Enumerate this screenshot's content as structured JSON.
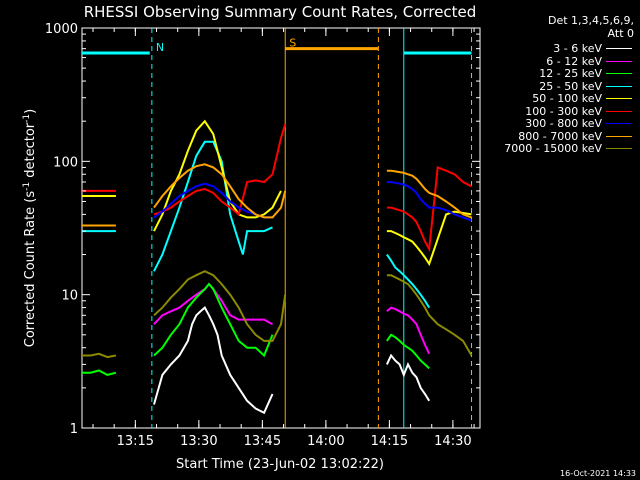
{
  "chart_data": {
    "type": "line",
    "title": "RHESSI Observing Summary Count Rates, Corrected",
    "xlabel": "Start Time (23-Jun-02 13:02:22)",
    "ylabel": "Corrected Count Rate (s⁻¹ detector⁻¹)",
    "ylabel_parts": {
      "main": "Corrected Count Rate (s",
      "exp1": "-1",
      "mid": " detector",
      "exp2": "-1",
      "end": ")"
    },
    "yscale": "log",
    "ylim": [
      1,
      1000
    ],
    "xlim_minutes": [
      0,
      94
    ],
    "x_ticks": [
      {
        "label": "13:15",
        "minutes": 12.6
      },
      {
        "label": "13:30",
        "minutes": 27.6
      },
      {
        "label": "13:45",
        "minutes": 42.6
      },
      {
        "label": "14:00",
        "minutes": 57.6
      },
      {
        "label": "14:15",
        "minutes": 72.6
      },
      {
        "label": "14:30",
        "minutes": 87.6
      }
    ],
    "y_ticks": [
      {
        "label": "1",
        "value": 1
      },
      {
        "label": "10",
        "value": 10
      },
      {
        "label": "100",
        "value": 100
      },
      {
        "label": "1000",
        "value": 1000
      }
    ],
    "detectors": "Det 1,3,4,5,6,9,",
    "attenuator": "Att 0",
    "timestamp": "16-Oct-2021 14:33",
    "legend_position": "top-right",
    "series": [
      {
        "name": "3 - 6 keV",
        "color": "#ffffff",
        "segments": [
          {
            "x": [
              17,
              19,
              21,
              23,
              25,
              26,
              27,
              28,
              29,
              30,
              31,
              32,
              33,
              35,
              37,
              39,
              41,
              43,
              45
            ],
            "y": [
              1.5,
              2.5,
              3,
              3.5,
              4.5,
              6,
              7,
              7.5,
              8,
              7,
              6,
              5,
              3.5,
              2.5,
              2,
              1.6,
              1.4,
              1.3,
              1.8
            ]
          },
          {
            "x": [
              72,
              73,
              74,
              75,
              76,
              77,
              78,
              79,
              80,
              81,
              82
            ],
            "y": [
              3.0,
              3.5,
              3.2,
              3.0,
              2.5,
              3.0,
              2.6,
              2.4,
              2.0,
              1.8,
              1.6
            ]
          }
        ]
      },
      {
        "name": "6 - 12 keV",
        "color": "#ff00ff",
        "segments": [
          {
            "x": [
              17,
              19,
              21,
              23,
              25,
              27,
              29,
              30,
              31,
              33,
              35,
              37,
              39,
              41,
              43,
              45
            ],
            "y": [
              6,
              7,
              7.5,
              8,
              9,
              10,
              11,
              12,
              11,
              9,
              7,
              6.5,
              6.5,
              6.5,
              6.5,
              6
            ]
          },
          {
            "x": [
              72,
              73,
              74,
              75,
              76,
              77,
              78,
              79,
              80,
              81,
              82
            ],
            "y": [
              7.5,
              8,
              7.8,
              7.5,
              7.2,
              7,
              6.5,
              6,
              5,
              4.2,
              3.6
            ]
          }
        ]
      },
      {
        "name": "12 - 25 keV",
        "color": "#00ff00",
        "segments": [
          {
            "x": [
              0,
              2,
              4,
              6,
              8
            ],
            "y": [
              2.6,
              2.6,
              2.7,
              2.5,
              2.6
            ]
          },
          {
            "x": [
              17,
              19,
              21,
              23,
              25,
              27,
              29,
              30,
              31,
              33,
              35,
              37,
              39,
              41,
              43,
              45
            ],
            "y": [
              3.5,
              4,
              5,
              6,
              8,
              9.5,
              11,
              12,
              11,
              8,
              6,
              4.5,
              4,
              4,
              3.5,
              5
            ]
          },
          {
            "x": [
              72,
              73,
              74,
              75,
              76,
              77,
              78,
              79,
              80,
              81,
              82
            ],
            "y": [
              4.5,
              5,
              4.8,
              4.5,
              4.2,
              4,
              3.8,
              3.5,
              3.2,
              3,
              2.8
            ]
          }
        ]
      },
      {
        "name": "25 - 50 keV",
        "color": "#00ffff",
        "segments": [
          {
            "x": [
              0,
              2,
              4,
              6,
              8
            ],
            "y": [
              30,
              30,
              30,
              30,
              30
            ]
          },
          {
            "x": [
              17,
              19,
              21,
              23,
              25,
              27,
              29,
              31,
              33,
              35,
              37,
              38,
              39,
              41,
              43,
              45
            ],
            "y": [
              15,
              20,
              30,
              45,
              70,
              110,
              140,
              140,
              100,
              40,
              25,
              20,
              30,
              30,
              30,
              32
            ]
          },
          {
            "x": [
              72,
              73,
              74,
              75,
              76,
              77,
              78,
              79,
              80,
              81,
              82
            ],
            "y": [
              20,
              18,
              16,
              15,
              14,
              13,
              12,
              11,
              10,
              9,
              8
            ]
          }
        ]
      },
      {
        "name": "50 - 100 keV",
        "color": "#ffff00",
        "segments": [
          {
            "x": [
              0,
              2,
              4,
              6,
              8
            ],
            "y": [
              55,
              55,
              55,
              55,
              55
            ]
          },
          {
            "x": [
              17,
              19,
              21,
              23,
              25,
              27,
              29,
              31,
              33,
              35,
              37,
              39,
              41,
              43,
              45,
              47
            ],
            "y": [
              30,
              40,
              60,
              80,
              120,
              170,
              200,
              160,
              90,
              50,
              40,
              38,
              38,
              40,
              45,
              60
            ]
          },
          {
            "x": [
              72,
              73,
              74,
              75,
              76,
              77,
              78,
              79,
              80,
              81,
              82,
              86,
              88,
              90,
              92
            ],
            "y": [
              30,
              30,
              29,
              28,
              27,
              26,
              25,
              23,
              21,
              19,
              17,
              40,
              42,
              41,
              40
            ]
          }
        ]
      },
      {
        "name": "100 - 300 keV",
        "color": "#ff0000",
        "segments": [
          {
            "x": [
              0,
              2,
              4,
              6,
              8
            ],
            "y": [
              60,
              60,
              60,
              60,
              60
            ]
          },
          {
            "x": [
              17,
              19,
              21,
              23,
              25,
              27,
              29,
              31,
              33,
              35,
              37,
              39,
              41,
              43,
              45,
              47,
              48
            ],
            "y": [
              40,
              42,
              45,
              50,
              55,
              60,
              62,
              58,
              50,
              45,
              40,
              70,
              72,
              70,
              80,
              150,
              190
            ]
          },
          {
            "x": [
              72,
              73,
              74,
              75,
              76,
              77,
              78,
              79,
              80,
              81,
              82,
              84,
              86,
              88,
              90,
              92
            ],
            "y": [
              45,
              45,
              44,
              43,
              42,
              40,
              38,
              35,
              30,
              25,
              22,
              90,
              85,
              80,
              70,
              65
            ]
          }
        ]
      },
      {
        "name": "300 - 800 keV",
        "color": "#0000ff",
        "segments": [
          {
            "x": [
              17,
              19,
              21,
              23,
              25,
              27,
              29,
              31,
              33,
              35,
              37,
              39,
              41,
              43,
              45
            ],
            "y": [
              38,
              42,
              48,
              55,
              60,
              65,
              68,
              65,
              58,
              50,
              45,
              42,
              40,
              38,
              38
            ]
          },
          {
            "x": [
              72,
              73,
              74,
              75,
              76,
              77,
              78,
              79,
              80,
              81,
              82,
              84,
              86,
              88,
              90,
              92
            ],
            "y": [
              70,
              70,
              69,
              68,
              67,
              65,
              62,
              58,
              52,
              48,
              45,
              45,
              43,
              40,
              38,
              36
            ]
          }
        ]
      },
      {
        "name": "800 - 7000 keV",
        "color": "#ffa500",
        "segments": [
          {
            "x": [
              0,
              2,
              4,
              6,
              8
            ],
            "y": [
              33,
              33,
              33,
              33,
              33
            ]
          },
          {
            "x": [
              17,
              19,
              21,
              23,
              25,
              27,
              29,
              31,
              33,
              35,
              37,
              39,
              41,
              43,
              45,
              47,
              48
            ],
            "y": [
              45,
              55,
              65,
              75,
              85,
              92,
              95,
              90,
              80,
              65,
              52,
              45,
              40,
              38,
              38,
              45,
              60
            ]
          },
          {
            "x": [
              72,
              73,
              74,
              75,
              76,
              77,
              78,
              79,
              80,
              81,
              82,
              84,
              86,
              88,
              90,
              92
            ],
            "y": [
              85,
              85,
              84,
              83,
              82,
              80,
              78,
              74,
              68,
              62,
              58,
              55,
              50,
              45,
              40,
              38
            ]
          }
        ]
      },
      {
        "name": "7000 - 15000 keV",
        "color": "#8b8b00",
        "segments": [
          {
            "x": [
              0,
              2,
              4,
              6,
              8
            ],
            "y": [
              3.5,
              3.5,
              3.6,
              3.4,
              3.5
            ]
          },
          {
            "x": [
              17,
              19,
              21,
              23,
              25,
              27,
              29,
              31,
              33,
              35,
              37,
              39,
              41,
              43,
              45,
              47,
              48
            ],
            "y": [
              7,
              8,
              9.5,
              11,
              13,
              14,
              15,
              14,
              12,
              10,
              8,
              6,
              5,
              4.5,
              4.5,
              6,
              10
            ]
          },
          {
            "x": [
              72,
              73,
              74,
              75,
              76,
              77,
              78,
              79,
              80,
              81,
              82,
              84,
              86,
              88,
              90,
              92
            ],
            "y": [
              14,
              14,
              13.5,
              13,
              12.5,
              12,
              11,
              10,
              9,
              8,
              7,
              6,
              5.5,
              5,
              4.5,
              3.5
            ]
          }
        ]
      }
    ],
    "annotations": [
      {
        "text": "N",
        "color": "#00ffff",
        "x": 16.5,
        "line_y": 650,
        "span": [
          0,
          16
        ]
      },
      {
        "text": "S",
        "color": "#ffa500",
        "x": 48,
        "line_y": 700,
        "span": [
          48,
          70
        ]
      }
    ],
    "vertical_markers": [
      {
        "x": 16.5,
        "color": "#00ffff",
        "style": "dashed"
      },
      {
        "x": 48,
        "color": "#ffa500",
        "style": "solid"
      },
      {
        "x": 70,
        "color": "#ffa500",
        "style": "dashed"
      },
      {
        "x": 76,
        "color": "#00ffff",
        "style": "solid"
      },
      {
        "x": 92,
        "color": "#00ffff",
        "style": "dashed"
      }
    ],
    "extra_hlines": [
      {
        "color": "#00ffff",
        "value": 650,
        "x": [
          76,
          92
        ]
      }
    ]
  }
}
